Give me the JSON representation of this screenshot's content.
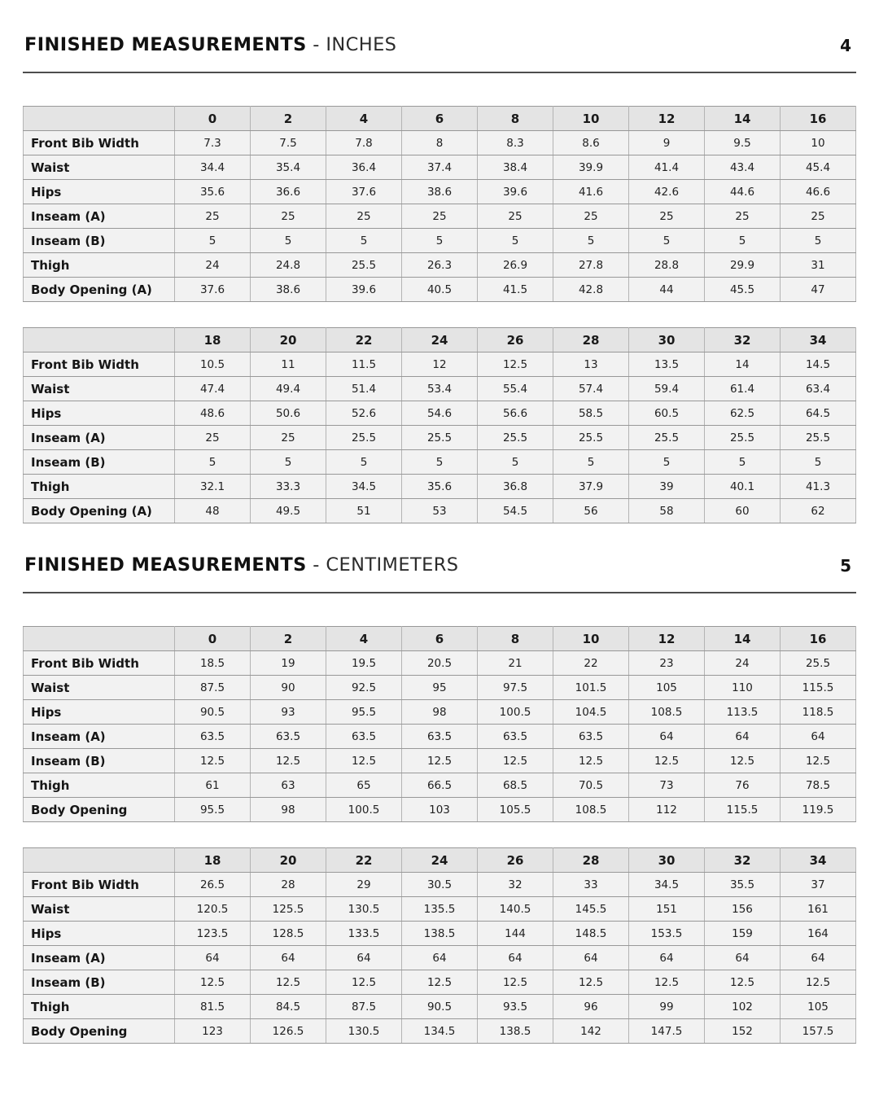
{
  "sections": [
    {
      "title": "FINISHED MEASUREMENTS",
      "title_suffix": " - INCHES",
      "page_number": "4",
      "tables": [
        {
          "sizes": [
            "0",
            "2",
            "4",
            "6",
            "8",
            "10",
            "12",
            "14",
            "16"
          ],
          "rows": [
            {
              "label": "Front Bib Width",
              "values": [
                "7.3",
                "7.5",
                "7.8",
                "8",
                "8.3",
                "8.6",
                "9",
                "9.5",
                "10"
              ]
            },
            {
              "label": "Waist",
              "values": [
                "34.4",
                "35.4",
                "36.4",
                "37.4",
                "38.4",
                "39.9",
                "41.4",
                "43.4",
                "45.4"
              ]
            },
            {
              "label": "Hips",
              "values": [
                "35.6",
                "36.6",
                "37.6",
                "38.6",
                "39.6",
                "41.6",
                "42.6",
                "44.6",
                "46.6"
              ]
            },
            {
              "label": "Inseam (A)",
              "values": [
                "25",
                "25",
                "25",
                "25",
                "25",
                "25",
                "25",
                "25",
                "25"
              ]
            },
            {
              "label": "Inseam (B)",
              "values": [
                "5",
                "5",
                "5",
                "5",
                "5",
                "5",
                "5",
                "5",
                "5"
              ]
            },
            {
              "label": "Thigh",
              "values": [
                "24",
                "24.8",
                "25.5",
                "26.3",
                "26.9",
                "27.8",
                "28.8",
                "29.9",
                "31"
              ]
            },
            {
              "label": "Body Opening (A)",
              "values": [
                "37.6",
                "38.6",
                "39.6",
                "40.5",
                "41.5",
                "42.8",
                "44",
                "45.5",
                "47"
              ]
            }
          ]
        },
        {
          "sizes": [
            "18",
            "20",
            "22",
            "24",
            "26",
            "28",
            "30",
            "32",
            "34"
          ],
          "rows": [
            {
              "label": "Front Bib Width",
              "values": [
                "10.5",
                "11",
                "11.5",
                "12",
                "12.5",
                "13",
                "13.5",
                "14",
                "14.5"
              ]
            },
            {
              "label": "Waist",
              "values": [
                "47.4",
                "49.4",
                "51.4",
                "53.4",
                "55.4",
                "57.4",
                "59.4",
                "61.4",
                "63.4"
              ]
            },
            {
              "label": "Hips",
              "values": [
                "48.6",
                "50.6",
                "52.6",
                "54.6",
                "56.6",
                "58.5",
                "60.5",
                "62.5",
                "64.5"
              ]
            },
            {
              "label": "Inseam (A)",
              "values": [
                "25",
                "25",
                "25.5",
                "25.5",
                "25.5",
                "25.5",
                "25.5",
                "25.5",
                "25.5"
              ]
            },
            {
              "label": "Inseam (B)",
              "values": [
                "5",
                "5",
                "5",
                "5",
                "5",
                "5",
                "5",
                "5",
                "5"
              ]
            },
            {
              "label": "Thigh",
              "values": [
                "32.1",
                "33.3",
                "34.5",
                "35.6",
                "36.8",
                "37.9",
                "39",
                "40.1",
                "41.3"
              ]
            },
            {
              "label": "Body Opening (A)",
              "values": [
                "48",
                "49.5",
                "51",
                "53",
                "54.5",
                "56",
                "58",
                "60",
                "62"
              ]
            }
          ]
        }
      ]
    },
    {
      "title": "FINISHED MEASUREMENTS",
      "title_suffix": " - CENTIMETERS",
      "page_number": "5",
      "tables": [
        {
          "sizes": [
            "0",
            "2",
            "4",
            "6",
            "8",
            "10",
            "12",
            "14",
            "16"
          ],
          "rows": [
            {
              "label": "Front Bib Width",
              "values": [
                "18.5",
                "19",
                "19.5",
                "20.5",
                "21",
                "22",
                "23",
                "24",
                "25.5"
              ]
            },
            {
              "label": "Waist",
              "values": [
                "87.5",
                "90",
                "92.5",
                "95",
                "97.5",
                "101.5",
                "105",
                "110",
                "115.5"
              ]
            },
            {
              "label": "Hips",
              "values": [
                "90.5",
                "93",
                "95.5",
                "98",
                "100.5",
                "104.5",
                "108.5",
                "113.5",
                "118.5"
              ]
            },
            {
              "label": "Inseam (A)",
              "values": [
                "63.5",
                "63.5",
                "63.5",
                "63.5",
                "63.5",
                "63.5",
                "64",
                "64",
                "64"
              ]
            },
            {
              "label": "Inseam (B)",
              "values": [
                "12.5",
                "12.5",
                "12.5",
                "12.5",
                "12.5",
                "12.5",
                "12.5",
                "12.5",
                "12.5"
              ]
            },
            {
              "label": "Thigh",
              "values": [
                "61",
                "63",
                "65",
                "66.5",
                "68.5",
                "70.5",
                "73",
                "76",
                "78.5"
              ]
            },
            {
              "label": "Body Opening",
              "values": [
                "95.5",
                "98",
                "100.5",
                "103",
                "105.5",
                "108.5",
                "112",
                "115.5",
                "119.5"
              ]
            }
          ]
        },
        {
          "sizes": [
            "18",
            "20",
            "22",
            "24",
            "26",
            "28",
            "30",
            "32",
            "34"
          ],
          "rows": [
            {
              "label": "Front Bib Width",
              "values": [
                "26.5",
                "28",
                "29",
                "30.5",
                "32",
                "33",
                "34.5",
                "35.5",
                "37"
              ]
            },
            {
              "label": "Waist",
              "values": [
                "120.5",
                "125.5",
                "130.5",
                "135.5",
                "140.5",
                "145.5",
                "151",
                "156",
                "161"
              ]
            },
            {
              "label": "Hips",
              "values": [
                "123.5",
                "128.5",
                "133.5",
                "138.5",
                "144",
                "148.5",
                "153.5",
                "159",
                "164"
              ]
            },
            {
              "label": "Inseam (A)",
              "values": [
                "64",
                "64",
                "64",
                "64",
                "64",
                "64",
                "64",
                "64",
                "64"
              ]
            },
            {
              "label": "Inseam (B)",
              "values": [
                "12.5",
                "12.5",
                "12.5",
                "12.5",
                "12.5",
                "12.5",
                "12.5",
                "12.5",
                "12.5"
              ]
            },
            {
              "label": "Thigh",
              "values": [
                "81.5",
                "84.5",
                "87.5",
                "90.5",
                "93.5",
                "96",
                "99",
                "102",
                "105"
              ]
            },
            {
              "label": "Body Opening",
              "values": [
                "123",
                "126.5",
                "130.5",
                "134.5",
                "138.5",
                "142",
                "147.5",
                "152",
                "157.5"
              ]
            }
          ]
        }
      ]
    }
  ]
}
